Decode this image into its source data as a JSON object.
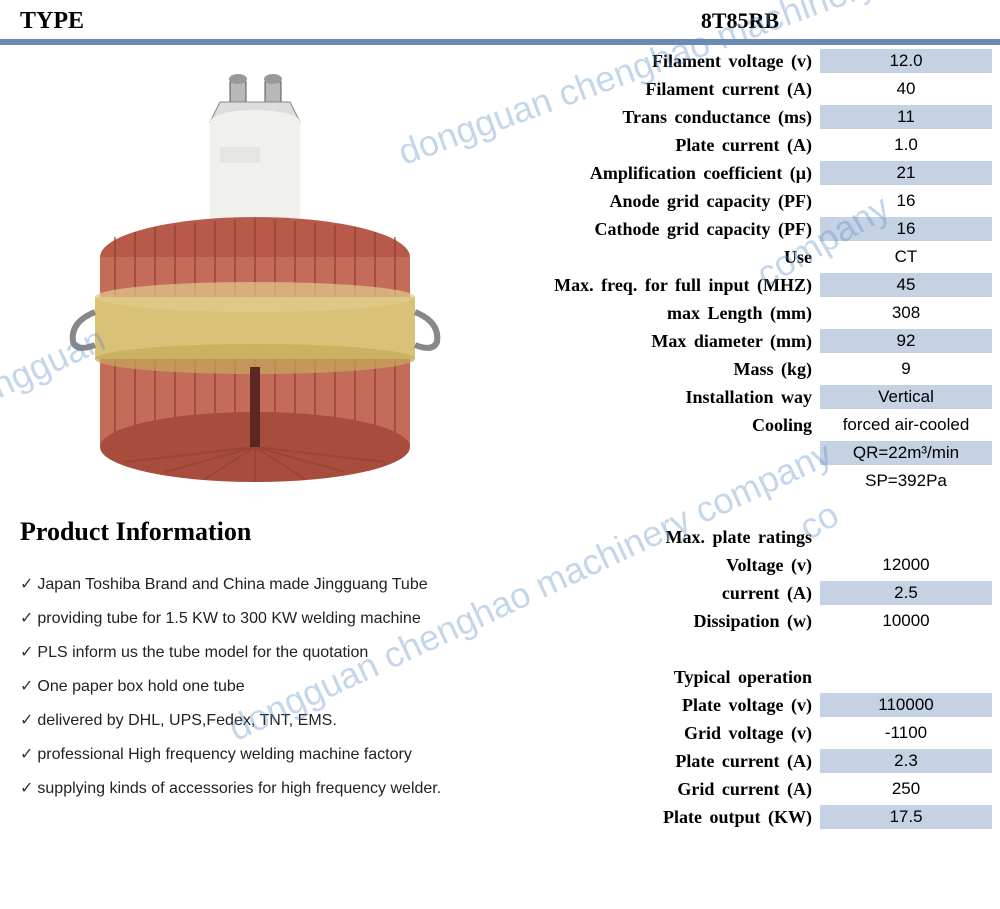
{
  "header": {
    "type_label": "TYPE",
    "model": "8T85RB"
  },
  "colors": {
    "header_border": "#6e89af",
    "row_shade": "#c4d2e3",
    "watermark": "#5a8cc4",
    "tube_body": "#c56b5a",
    "tube_band": "#d9c177",
    "tube_top": "#e8e8e8"
  },
  "watermark_text": "dongguan chenghao machinery company",
  "specs": [
    {
      "label": "Filament voltage (v)",
      "value": "12.0",
      "shaded": true
    },
    {
      "label": "Filament current (A)",
      "value": "40",
      "shaded": false
    },
    {
      "label": "Trans conductance  (ms)",
      "value": "11",
      "shaded": true
    },
    {
      "label": "Plate current (A)",
      "value": "1.0",
      "shaded": false
    },
    {
      "label": "Amplification coefficient  (μ)",
      "value": "21",
      "shaded": true
    },
    {
      "label": "Anode grid capacity  (PF)",
      "value": "16",
      "shaded": false
    },
    {
      "label": "Cathode grid capacity  (PF)",
      "value": "16",
      "shaded": true
    },
    {
      "label": "Use",
      "value": "CT",
      "shaded": false
    },
    {
      "label": "Max. freq. for full input  (MHZ)",
      "value": "45",
      "shaded": true
    },
    {
      "label": "max  Length  (mm)",
      "value": "308",
      "shaded": false
    },
    {
      "label": "Max diameter  (mm)",
      "value": "92",
      "shaded": true
    },
    {
      "label": "Mass  (kg)",
      "value": "9",
      "shaded": false
    },
    {
      "label": "Installation way",
      "value": "Vertical",
      "shaded": true
    },
    {
      "label": "Cooling",
      "value": "forced air-cooled",
      "shaded": false
    },
    {
      "label": "",
      "value": "QR=22m³/min",
      "shaded": true
    },
    {
      "label": "",
      "value": "SP=392Pa",
      "shaded": false
    }
  ],
  "sections": [
    {
      "title": "Max. plate ratings",
      "rows": [
        {
          "label": "Voltage  (v)",
          "value": "12000",
          "shaded": false
        },
        {
          "label": "current (A)",
          "value": "2.5",
          "shaded": true
        },
        {
          "label": "Dissipation (w)",
          "value": "10000",
          "shaded": false
        }
      ]
    },
    {
      "title": "Typical operation",
      "rows": [
        {
          "label": "Plate voltage  (v)",
          "value": "110000",
          "shaded": true
        },
        {
          "label": "Grid voltage  (v)",
          "value": "-1100",
          "shaded": false
        },
        {
          "label": "Plate current  (A)",
          "value": "2.3",
          "shaded": true
        },
        {
          "label": "Grid current  (A)",
          "value": "250",
          "shaded": false
        },
        {
          "label": "Plate output  (KW)",
          "value": "17.5",
          "shaded": true
        }
      ]
    }
  ],
  "product_info": {
    "title": "Product Information",
    "items": [
      "Japan Toshiba Brand and China made Jingguang Tube",
      "providing tube for 1.5 KW to 300 KW welding machine",
      "PLS inform us the tube model for the quotation",
      "One paper box hold one tube",
      "delivered by DHL, UPS,Fedex, TNT, EMS.",
      "professional High frequency welding machine factory",
      "supplying kinds of accessories for high frequency welder."
    ]
  }
}
